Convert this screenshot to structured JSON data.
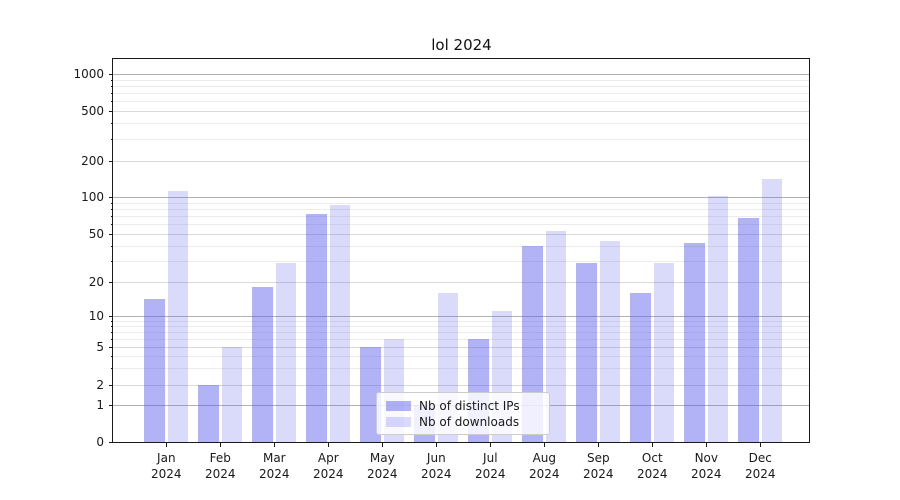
{
  "chart_data": {
    "type": "bar",
    "title": "lol 2024",
    "categories": [
      "Jan",
      "Feb",
      "Mar",
      "Apr",
      "May",
      "Jun",
      "Jul",
      "Aug",
      "Sep",
      "Oct",
      "Nov",
      "Dec"
    ],
    "year": "2024",
    "series": [
      {
        "name": "Nb of distinct IPs",
        "color": "rgba(85,85,238,0.45)",
        "values": [
          14,
          2,
          18,
          73,
          5,
          1,
          6,
          40,
          29,
          16,
          42,
          68
        ]
      },
      {
        "name": "Nb of downloads",
        "color": "rgba(85,85,238,0.22)",
        "values": [
          112,
          5,
          29,
          86,
          6,
          16,
          11,
          53,
          44,
          29,
          102,
          141
        ]
      }
    ],
    "yticks": [
      0,
      1,
      2,
      5,
      10,
      20,
      50,
      100,
      200,
      500,
      1000
    ],
    "ylim": [
      0,
      1000
    ],
    "xlabel": "",
    "ylabel": "",
    "scale": "symlog",
    "grid": true,
    "legend_position": "lower center"
  },
  "colors": {
    "bar_distinct_ips": "rgba(85,85,238,0.45)",
    "bar_downloads": "rgba(85,85,238,0.22)",
    "grid_major": "#b2b2b2",
    "grid_mid": "#d9d9d9",
    "grid_minor": "#ececec",
    "axis": "#1a1a1a",
    "legend_border": "#cccccc"
  }
}
